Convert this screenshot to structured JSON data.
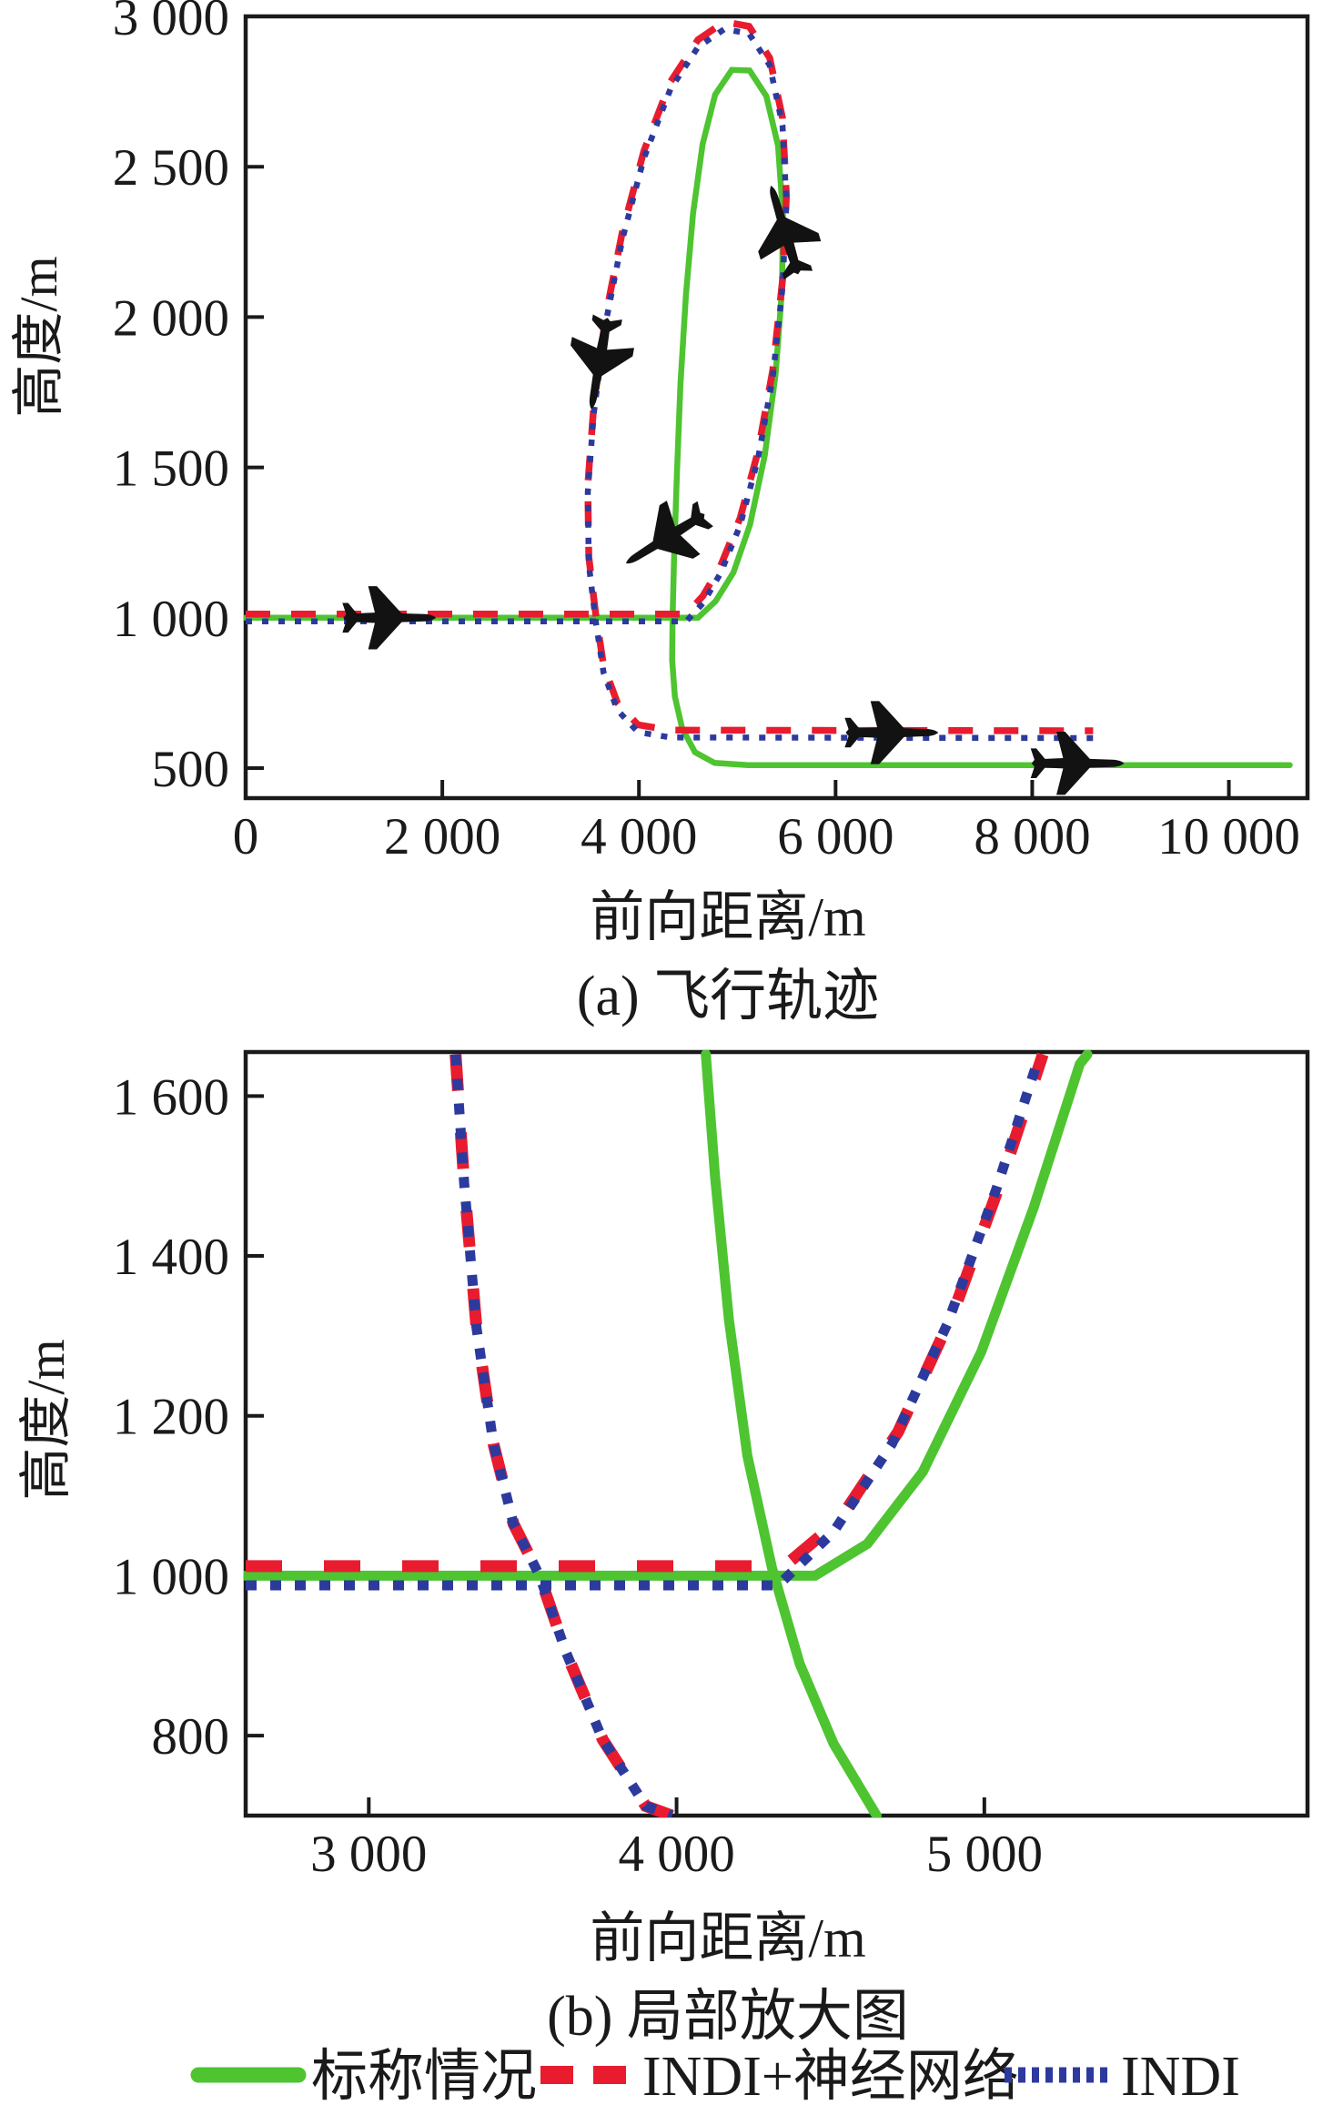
{
  "colors": {
    "nominal": "#4ec431",
    "indi_nn": "#e81c2e",
    "indi": "#2c3a9e",
    "axis": "#1a1a1a",
    "aircraft": "#121212"
  },
  "legend": {
    "items": [
      {
        "key": "nominal",
        "label": "标称情况",
        "style": "solid"
      },
      {
        "key": "indi_nn",
        "label": "INDI+神经网络",
        "style": "dashed"
      },
      {
        "key": "indi",
        "label": "INDI",
        "style": "dotted"
      }
    ]
  },
  "chart_data": [
    {
      "type": "line",
      "title": "(a) 飞行轨迹",
      "xlabel": "前向距离/m",
      "ylabel": "高度/m",
      "xlim": [
        0,
        10800
      ],
      "ylim": [
        400,
        3000
      ],
      "grid": false,
      "xticks": [
        0,
        2000,
        4000,
        6000,
        8000,
        10000
      ],
      "xtick_labels": [
        "0",
        "2 000",
        "4 000",
        "6 000",
        "8 000",
        "10 000"
      ],
      "yticks": [
        500,
        1000,
        1500,
        2000,
        2500,
        3000
      ],
      "ytick_labels": [
        "500",
        "1 000",
        "1 500",
        "2 000",
        "2 500",
        "3 000"
      ],
      "series": [
        {
          "key": "nominal",
          "name": "标称情况",
          "style": "solid",
          "color": "#4ec431",
          "segments": [
            [
              [
                0,
                1000
              ],
              [
                4600,
                1000
              ],
              [
                4780,
                1055
              ],
              [
                4960,
                1150
              ],
              [
                5130,
                1310
              ],
              [
                5280,
                1540
              ],
              [
                5390,
                1810
              ],
              [
                5455,
                2090
              ],
              [
                5465,
                2340
              ],
              [
                5415,
                2570
              ],
              [
                5295,
                2735
              ],
              [
                5125,
                2820
              ],
              [
                4945,
                2822
              ],
              [
                4775,
                2740
              ],
              [
                4648,
                2575
              ],
              [
                4550,
                2345
              ],
              [
                4478,
                2075
              ],
              [
                4422,
                1775
              ],
              [
                4386,
                1475
              ],
              [
                4357,
                1195
              ],
              [
                4342,
                1000
              ],
              [
                4338,
                860
              ],
              [
                4365,
                738
              ],
              [
                4438,
                633
              ],
              [
                4570,
                553
              ],
              [
                4770,
                517
              ],
              [
                5110,
                510
              ],
              [
                10620,
                510
              ]
            ]
          ]
        },
        {
          "key": "indi_nn",
          "name": "INDI+神经网络",
          "style": "dashed",
          "color": "#e81c2e",
          "segments": [
            [
              [
                0,
                1000
              ],
              [
                4480,
                1000
              ],
              [
                4650,
                1060
              ],
              [
                4830,
                1160
              ],
              [
                5030,
                1320
              ],
              [
                5210,
                1540
              ],
              [
                5360,
                1810
              ],
              [
                5460,
                2110
              ],
              [
                5500,
                2390
              ],
              [
                5460,
                2650
              ],
              [
                5330,
                2850
              ],
              [
                5120,
                2955
              ],
              [
                4870,
                2970
              ],
              [
                4600,
                2910
              ],
              [
                4320,
                2770
              ],
              [
                4050,
                2540
              ],
              [
                3830,
                2270
              ],
              [
                3660,
                1990
              ],
              [
                3540,
                1690
              ],
              [
                3480,
                1430
              ],
              [
                3490,
                1190
              ],
              [
                3560,
                1000
              ],
              [
                3640,
                830
              ],
              [
                3780,
                705
              ],
              [
                3990,
                632
              ],
              [
                4320,
                614
              ],
              [
                8620,
                612
              ]
            ]
          ]
        },
        {
          "key": "indi",
          "name": "INDI",
          "style": "dotted",
          "color": "#2c3a9e",
          "segments": [
            [
              [
                0,
                1000
              ],
              [
                4480,
                1000
              ],
              [
                4650,
                1060
              ],
              [
                4830,
                1160
              ],
              [
                5030,
                1320
              ],
              [
                5210,
                1540
              ],
              [
                5360,
                1810
              ],
              [
                5460,
                2110
              ],
              [
                5500,
                2390
              ],
              [
                5460,
                2650
              ],
              [
                5330,
                2850
              ],
              [
                5120,
                2955
              ],
              [
                4870,
                2970
              ],
              [
                4600,
                2910
              ],
              [
                4320,
                2770
              ],
              [
                4050,
                2540
              ],
              [
                3830,
                2270
              ],
              [
                3660,
                1990
              ],
              [
                3540,
                1690
              ],
              [
                3480,
                1430
              ],
              [
                3490,
                1190
              ],
              [
                3560,
                1000
              ],
              [
                3640,
                830
              ],
              [
                3780,
                705
              ],
              [
                3990,
                632
              ],
              [
                4320,
                614
              ],
              [
                8620,
                612
              ]
            ]
          ]
        }
      ],
      "aircraft_markers": [
        {
          "x": 1450,
          "y": 1000,
          "rotation": 0
        },
        {
          "x": 3600,
          "y": 1850,
          "rotation": 100
        },
        {
          "x": 4280,
          "y": 1265,
          "rotation": 148
        },
        {
          "x": 5485,
          "y": 2285,
          "rotation": -107
        },
        {
          "x": 6560,
          "y": 618,
          "rotation": 0
        },
        {
          "x": 8450,
          "y": 516,
          "rotation": 0
        }
      ]
    },
    {
      "type": "line",
      "title": "(b) 局部放大图",
      "xlabel": "前向距离/m",
      "ylabel": "高度/m",
      "xlim": [
        2600,
        6050
      ],
      "ylim": [
        700,
        1655
      ],
      "grid": false,
      "xticks": [
        3000,
        4000,
        5000
      ],
      "xtick_labels": [
        "3 000",
        "4 000",
        "5 000"
      ],
      "yticks": [
        800,
        1000,
        1200,
        1400,
        1600
      ],
      "ytick_labels": [
        "800",
        "1 000",
        "1 200",
        "1 400",
        "1 600"
      ],
      "series": [
        {
          "key": "nominal",
          "name": "标称情况",
          "style": "solid",
          "color": "#4ec431",
          "segments": [
            [
              [
                2600,
                1000
              ],
              [
                4450,
                1000
              ],
              [
                4620,
                1040
              ],
              [
                4800,
                1130
              ],
              [
                4990,
                1280
              ],
              [
                5160,
                1460
              ],
              [
                5310,
                1640
              ],
              [
                5335,
                1652
              ]
            ],
            [
              [
                4095,
                1652
              ],
              [
                4125,
                1500
              ],
              [
                4170,
                1320
              ],
              [
                4230,
                1150
              ],
              [
                4310,
                1010
              ],
              [
                4400,
                890
              ],
              [
                4510,
                790
              ],
              [
                4650,
                700
              ]
            ]
          ]
        },
        {
          "key": "indi_nn",
          "name": "INDI+神经网络",
          "style": "dashed",
          "color": "#e81c2e",
          "segments": [
            [
              [
                2600,
                1012
              ],
              [
                4350,
                1012
              ],
              [
                4530,
                1070
              ],
              [
                4720,
                1180
              ],
              [
                4900,
                1330
              ],
              [
                5060,
                1500
              ],
              [
                5190,
                1652
              ]
            ],
            [
              [
                3282,
                1652
              ],
              [
                3310,
                1490
              ],
              [
                3350,
                1310
              ],
              [
                3405,
                1165
              ],
              [
                3470,
                1065
              ],
              [
                3555,
                1000
              ],
              [
                3640,
                905
              ],
              [
                3760,
                795
              ],
              [
                3900,
                712
              ],
              [
                3985,
                700
              ]
            ]
          ]
        },
        {
          "key": "indi",
          "name": "INDI",
          "style": "dotted",
          "color": "#2c3a9e",
          "segments": [
            [
              [
                2600,
                988
              ],
              [
                4330,
                988
              ],
              [
                4510,
                1055
              ],
              [
                4700,
                1165
              ],
              [
                4880,
                1315
              ],
              [
                5040,
                1485
              ],
              [
                5170,
                1640
              ]
            ],
            [
              [
                3282,
                1652
              ],
              [
                3310,
                1490
              ],
              [
                3350,
                1310
              ],
              [
                3405,
                1165
              ],
              [
                3470,
                1065
              ],
              [
                3555,
                1000
              ],
              [
                3640,
                905
              ],
              [
                3760,
                795
              ],
              [
                3900,
                712
              ],
              [
                3985,
                700
              ]
            ]
          ]
        }
      ],
      "aircraft_markers": []
    }
  ]
}
